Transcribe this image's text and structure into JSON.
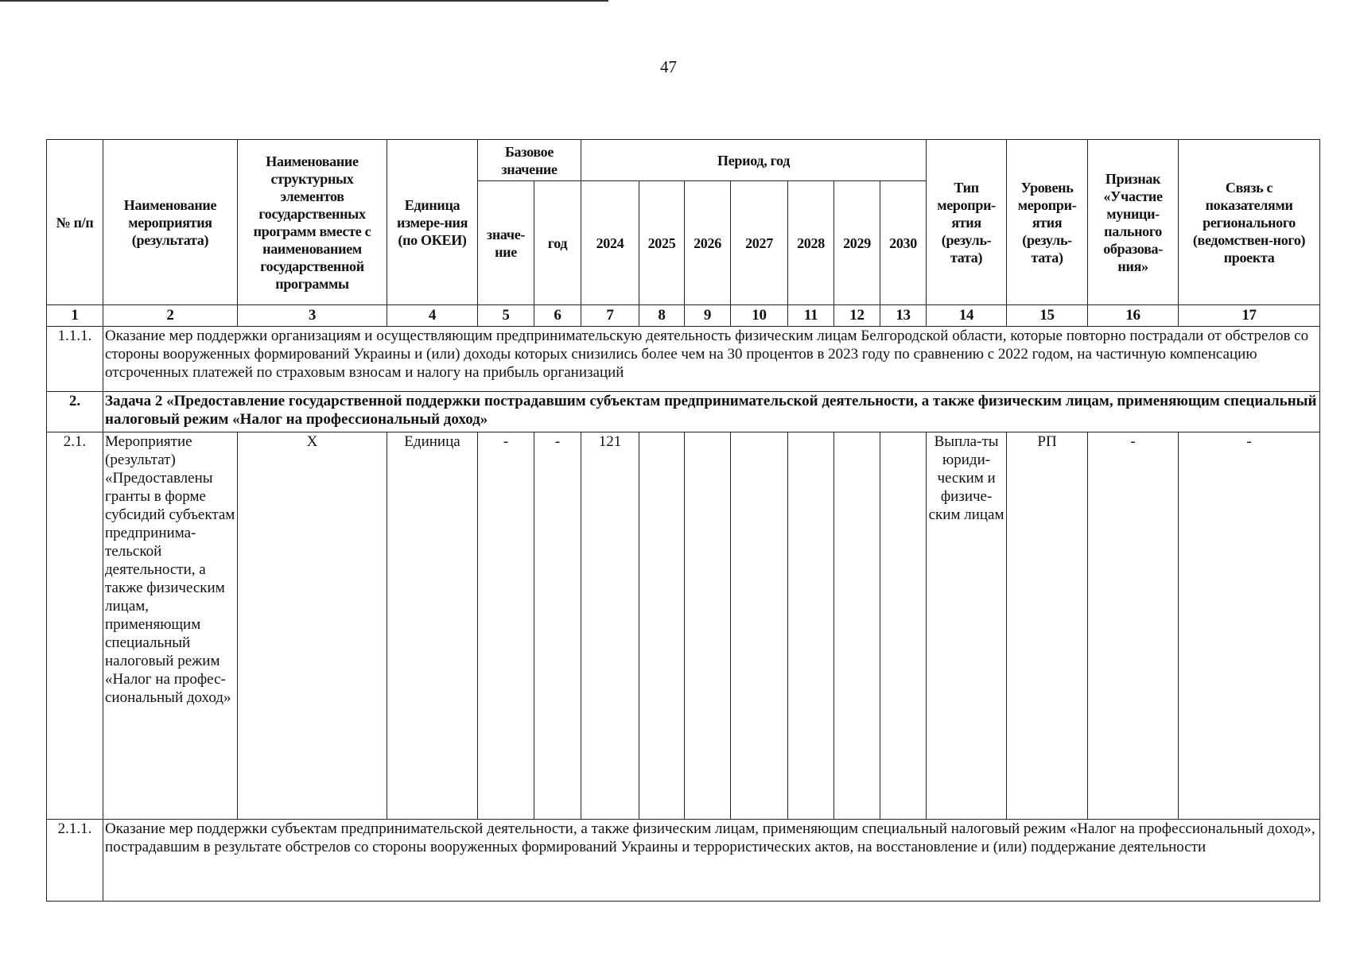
{
  "page_number": "47",
  "headers": {
    "col1": "№ п/п",
    "col2": "Наименование мероприятия (результата)",
    "col3": "Наименование структурных элементов государственных программ вместе с наименованием государственной программы",
    "col4": "Единица измере-ния (по ОКЕИ)",
    "base": "Базовое значение",
    "base_value": "значе-ние",
    "base_year": "год",
    "period": "Период, год",
    "years": [
      "2024",
      "2025",
      "2026",
      "2027",
      "2028",
      "2029",
      "2030"
    ],
    "col14": "Тип меропри-ятия (резуль-тата)",
    "col15": "Уровень меропри-ятия (резуль-тата)",
    "col16": "Признак «Участие муници-пального образова-ния»",
    "col17": "Связь с показателями регионального (ведомствен-ного) проекта"
  },
  "column_numbers": [
    "1",
    "2",
    "3",
    "4",
    "5",
    "6",
    "7",
    "8",
    "9",
    "10",
    "11",
    "12",
    "13",
    "14",
    "15",
    "16",
    "17"
  ],
  "rows": [
    {
      "num": "1.1.1.",
      "text": "Оказание мер поддержки организациям и осуществляющим предпринимательскую деятельность физическим лицам Белгородской области, которые повторно пострадали от обстрелов со стороны вооруженных формирований Украины и (или) доходы которых снизились более чем на 30 процентов в 2023 году по сравнению с 2022 годом, на частичную компенсацию отсроченных платежей по страховым взносам и налогу на прибыль организаций"
    },
    {
      "num": "2.",
      "text": "Задача 2 «Предоставление государственной поддержки пострадавшим субъектам предпринимательской деятельности, а также физическим лицам, применяющим специальный налоговый режим «Налог на профессиональный доход»"
    },
    {
      "num": "2.1.",
      "name": "Мероприятие (результат) «Предоставлены гранты в форме субсидий субъектам предпринима-тельской деятельности, а также физическим лицам, применяющим специальный налоговый режим «Налог на профес-сиональный доход»",
      "structural": "Х",
      "unit": "Единица",
      "base_value": "-",
      "base_year": "-",
      "y2024": "121",
      "type": "Выпла-ты юриди-ческим и физиче-ским лицам",
      "level": "РП",
      "municipal": "-",
      "link": "-"
    },
    {
      "num": "2.1.1.",
      "text": "Оказание мер поддержки субъектам предпринимательской деятельности, а также физическим лицам, применяющим специальный налоговый режим «Налог на профессиональный доход», пострадавшим в результате обстрелов со стороны вооруженных формирований Украины и террористических актов, на восстановление и (или) поддержание деятельности"
    }
  ]
}
